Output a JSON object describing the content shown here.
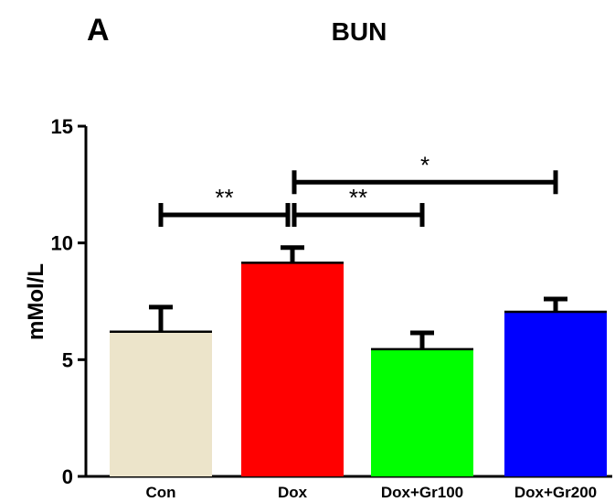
{
  "panel_label": "A",
  "chart_data": {
    "type": "bar",
    "title": "BUN",
    "ylabel": "mMol/L",
    "xlabel": "",
    "ylim": [
      0,
      15
    ],
    "yticks": [
      0,
      5,
      10,
      15
    ],
    "categories": [
      "Con",
      "Dox",
      "Dox+Gr100",
      "Dox+Gr200"
    ],
    "values": [
      6.2,
      9.15,
      5.45,
      7.05
    ],
    "errors": [
      1.05,
      0.65,
      0.7,
      0.55
    ],
    "colors": [
      "#ece4ca",
      "#ff0000",
      "#00ff00",
      "#0000ff"
    ],
    "significance": [
      {
        "from": "Con",
        "to": "Dox",
        "label": "**",
        "y": 11.2
      },
      {
        "from": "Dox",
        "to": "Dox+Gr100",
        "label": "**",
        "y": 11.2
      },
      {
        "from": "Dox",
        "to": "Dox+Gr200",
        "label": "*",
        "y": 12.6
      }
    ]
  }
}
